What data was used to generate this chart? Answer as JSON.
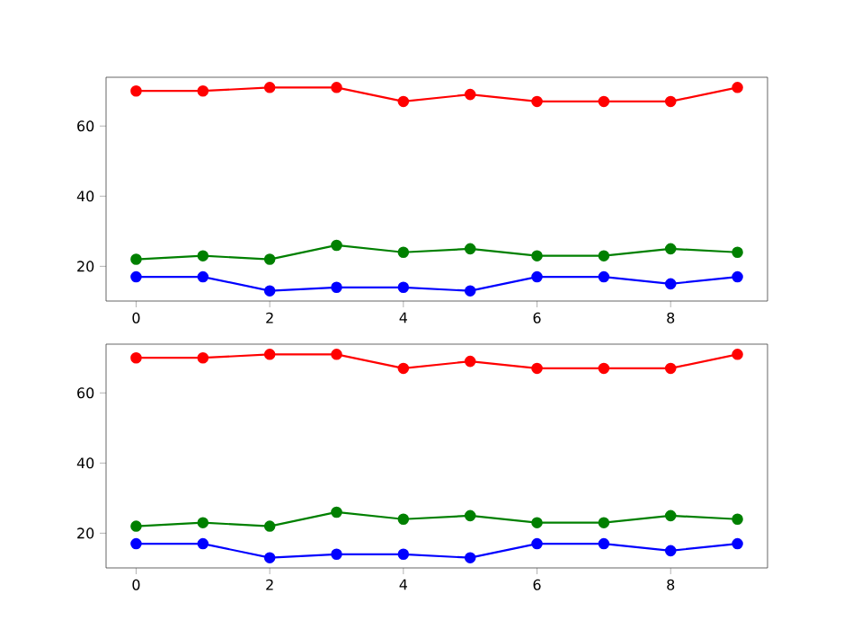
{
  "chart_data": [
    {
      "type": "line",
      "x": [
        0,
        1,
        2,
        3,
        4,
        5,
        6,
        7,
        8,
        9
      ],
      "xlim": [
        -0.45,
        9.45
      ],
      "ylim": [
        10.1,
        73.9
      ],
      "xticks": [
        0,
        2,
        4,
        6,
        8
      ],
      "yticks": [
        20,
        40,
        60
      ],
      "marker": "circle",
      "line_style": "solid",
      "series": [
        {
          "color": "#ff0000",
          "values": [
            70,
            70,
            71,
            71,
            67,
            69,
            67,
            67,
            67,
            71
          ]
        },
        {
          "color": "#008000",
          "values": [
            22,
            23,
            22,
            26,
            24,
            25,
            23,
            23,
            25,
            24
          ]
        },
        {
          "color": "#0000ff",
          "values": [
            17,
            17,
            13,
            14,
            14,
            13,
            17,
            17,
            15,
            17
          ]
        }
      ]
    },
    {
      "type": "line",
      "x": [
        0,
        1,
        2,
        3,
        4,
        5,
        6,
        7,
        8,
        9
      ],
      "xlim": [
        -0.45,
        9.45
      ],
      "ylim": [
        10.1,
        73.9
      ],
      "xticks": [
        0,
        2,
        4,
        6,
        8
      ],
      "yticks": [
        20,
        40,
        60
      ],
      "marker": "circle",
      "line_style": "solid",
      "series": [
        {
          "color": "#ff0000",
          "values": [
            70,
            70,
            71,
            71,
            67,
            69,
            67,
            67,
            67,
            71
          ]
        },
        {
          "color": "#008000",
          "values": [
            22,
            23,
            22,
            26,
            24,
            25,
            23,
            23,
            25,
            24
          ]
        },
        {
          "color": "#0000ff",
          "values": [
            17,
            17,
            13,
            14,
            14,
            13,
            17,
            17,
            15,
            17
          ]
        }
      ]
    }
  ]
}
